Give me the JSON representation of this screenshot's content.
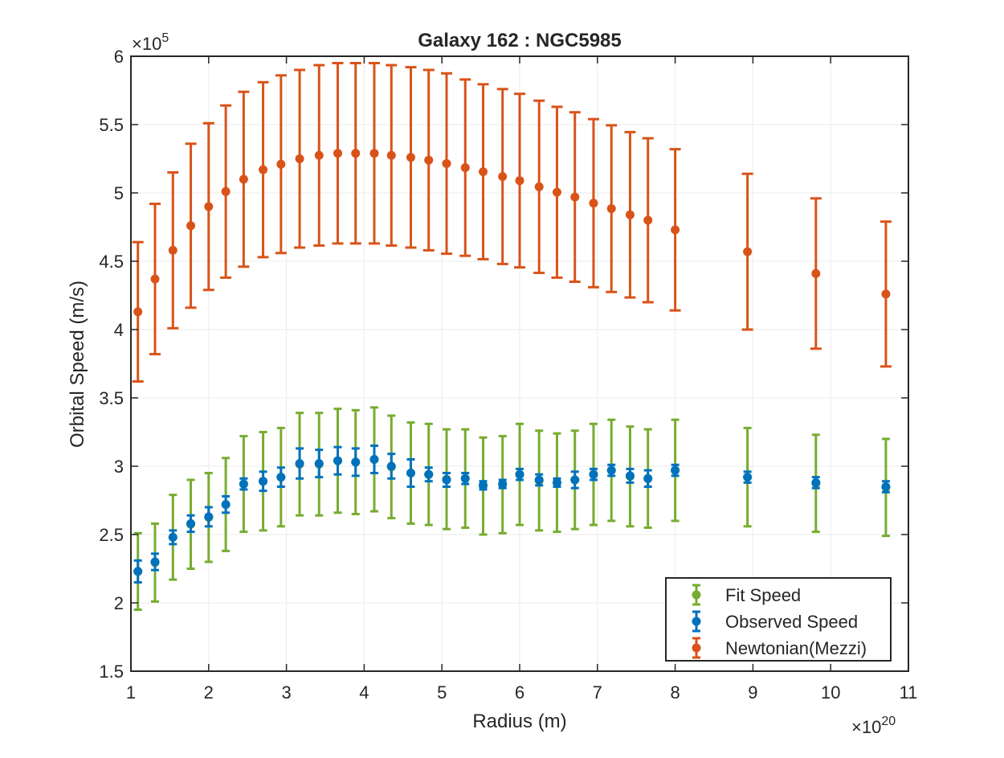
{
  "chart_data": {
    "type": "scatter",
    "title": "Galaxy 162 : NGC5985",
    "xlabel": "Radius (m)",
    "ylabel": "Orbital Speed (m/s)",
    "x_exponent": "×10",
    "x_exponent_power": "20",
    "y_exponent": "×10",
    "y_exponent_power": "5",
    "xlim": [
      1,
      11
    ],
    "ylim": [
      1.5,
      6
    ],
    "x_ticks": [
      1,
      2,
      3,
      4,
      5,
      6,
      7,
      8,
      9,
      10,
      11
    ],
    "y_ticks": [
      1.5,
      2,
      2.5,
      3,
      3.5,
      4,
      4.5,
      5,
      5.5,
      6
    ],
    "x_tick_labels": [
      "1",
      "2",
      "3",
      "4",
      "5",
      "6",
      "7",
      "8",
      "9",
      "10",
      "11"
    ],
    "y_tick_labels": [
      "1.5",
      "2",
      "2.5",
      "3",
      "3.5",
      "4",
      "4.5",
      "5",
      "5.5",
      "6"
    ],
    "grid": true,
    "legend_position": "bottom-right",
    "x": [
      1.09,
      1.31,
      1.54,
      1.77,
      2.0,
      2.22,
      2.45,
      2.7,
      2.93,
      3.17,
      3.42,
      3.66,
      3.89,
      4.13,
      4.35,
      4.6,
      4.83,
      5.06,
      5.3,
      5.53,
      5.78,
      6.0,
      6.25,
      6.48,
      6.71,
      6.95,
      7.18,
      7.42,
      7.65,
      8.0,
      8.93,
      9.81,
      10.71
    ],
    "series": [
      {
        "name": "Fit Speed",
        "color": "#77ac30",
        "cap_width": 10,
        "low": [
          1.95,
          2.01,
          2.17,
          2.25,
          2.3,
          2.38,
          2.52,
          2.53,
          2.56,
          2.64,
          2.64,
          2.66,
          2.65,
          2.67,
          2.62,
          2.58,
          2.57,
          2.54,
          2.55,
          2.5,
          2.51,
          2.57,
          2.53,
          2.52,
          2.54,
          2.57,
          2.6,
          2.56,
          2.55,
          2.6,
          2.56,
          2.52,
          2.49
        ],
        "high": [
          2.51,
          2.58,
          2.79,
          2.9,
          2.95,
          3.06,
          3.22,
          3.25,
          3.28,
          3.39,
          3.39,
          3.42,
          3.41,
          3.43,
          3.37,
          3.32,
          3.31,
          3.27,
          3.27,
          3.21,
          3.22,
          3.31,
          3.26,
          3.24,
          3.26,
          3.31,
          3.34,
          3.29,
          3.27,
          3.34,
          3.28,
          3.23,
          3.2
        ],
        "center": [
          2.23,
          2.295,
          2.48,
          2.575,
          2.625,
          2.72,
          2.87,
          2.89,
          2.92,
          3.015,
          3.015,
          3.04,
          3.03,
          3.05,
          2.995,
          2.95,
          2.94,
          2.905,
          2.91,
          2.855,
          2.865,
          2.94,
          2.895,
          2.88,
          2.9,
          2.94,
          2.97,
          2.925,
          2.91,
          2.97,
          2.92,
          2.875,
          2.845
        ]
      },
      {
        "name": "Observed Speed",
        "color": "#0072bd",
        "cap_width": 10,
        "center": [
          2.23,
          2.3,
          2.48,
          2.58,
          2.63,
          2.72,
          2.87,
          2.89,
          2.92,
          3.02,
          3.02,
          3.04,
          3.03,
          3.05,
          3.0,
          2.95,
          2.94,
          2.9,
          2.91,
          2.86,
          2.87,
          2.94,
          2.9,
          2.88,
          2.9,
          2.94,
          2.97,
          2.93,
          2.91,
          2.97,
          2.92,
          2.88,
          2.85
        ],
        "err": [
          0.08,
          0.06,
          0.05,
          0.06,
          0.07,
          0.06,
          0.04,
          0.07,
          0.07,
          0.11,
          0.1,
          0.1,
          0.1,
          0.1,
          0.09,
          0.1,
          0.05,
          0.05,
          0.04,
          0.03,
          0.03,
          0.04,
          0.04,
          0.03,
          0.06,
          0.04,
          0.04,
          0.05,
          0.06,
          0.04,
          0.04,
          0.04,
          0.04
        ]
      },
      {
        "name": "Newtonian(Mezzi)",
        "color": "#d95319",
        "cap_width": 14,
        "center": [
          4.13,
          4.37,
          4.58,
          4.76,
          4.9,
          5.01,
          5.1,
          5.17,
          5.21,
          5.25,
          5.275,
          5.29,
          5.29,
          5.29,
          5.275,
          5.26,
          5.24,
          5.215,
          5.185,
          5.155,
          5.12,
          5.09,
          5.045,
          5.005,
          4.97,
          4.925,
          4.885,
          4.84,
          4.8,
          4.73,
          4.57,
          4.41,
          4.26
        ],
        "err": [
          0.51,
          0.55,
          0.57,
          0.6,
          0.61,
          0.63,
          0.64,
          0.64,
          0.65,
          0.65,
          0.66,
          0.66,
          0.66,
          0.66,
          0.66,
          0.66,
          0.66,
          0.66,
          0.645,
          0.64,
          0.64,
          0.635,
          0.63,
          0.625,
          0.62,
          0.615,
          0.61,
          0.605,
          0.6,
          0.59,
          0.57,
          0.55,
          0.53
        ]
      }
    ]
  }
}
